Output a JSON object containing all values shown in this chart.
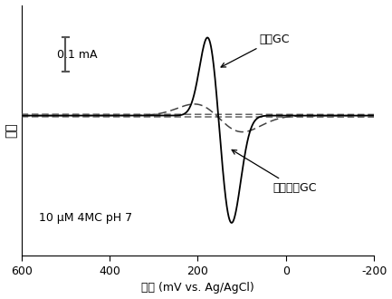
{
  "xlabel": "电势 (mV vs. Ag/AgCl)",
  "ylabel": "电流",
  "annotation1": "抛光GC",
  "annotation2": "吡啶清洗GC",
  "scale_label": "0.1 mA",
  "text_label": "10 μM 4MC pH 7",
  "xlim": [
    600,
    -200
  ],
  "xticks": [
    600,
    400,
    200,
    0,
    -200
  ],
  "background_color": "#ffffff",
  "line_color": "#000000",
  "dashed_color": "#444444"
}
